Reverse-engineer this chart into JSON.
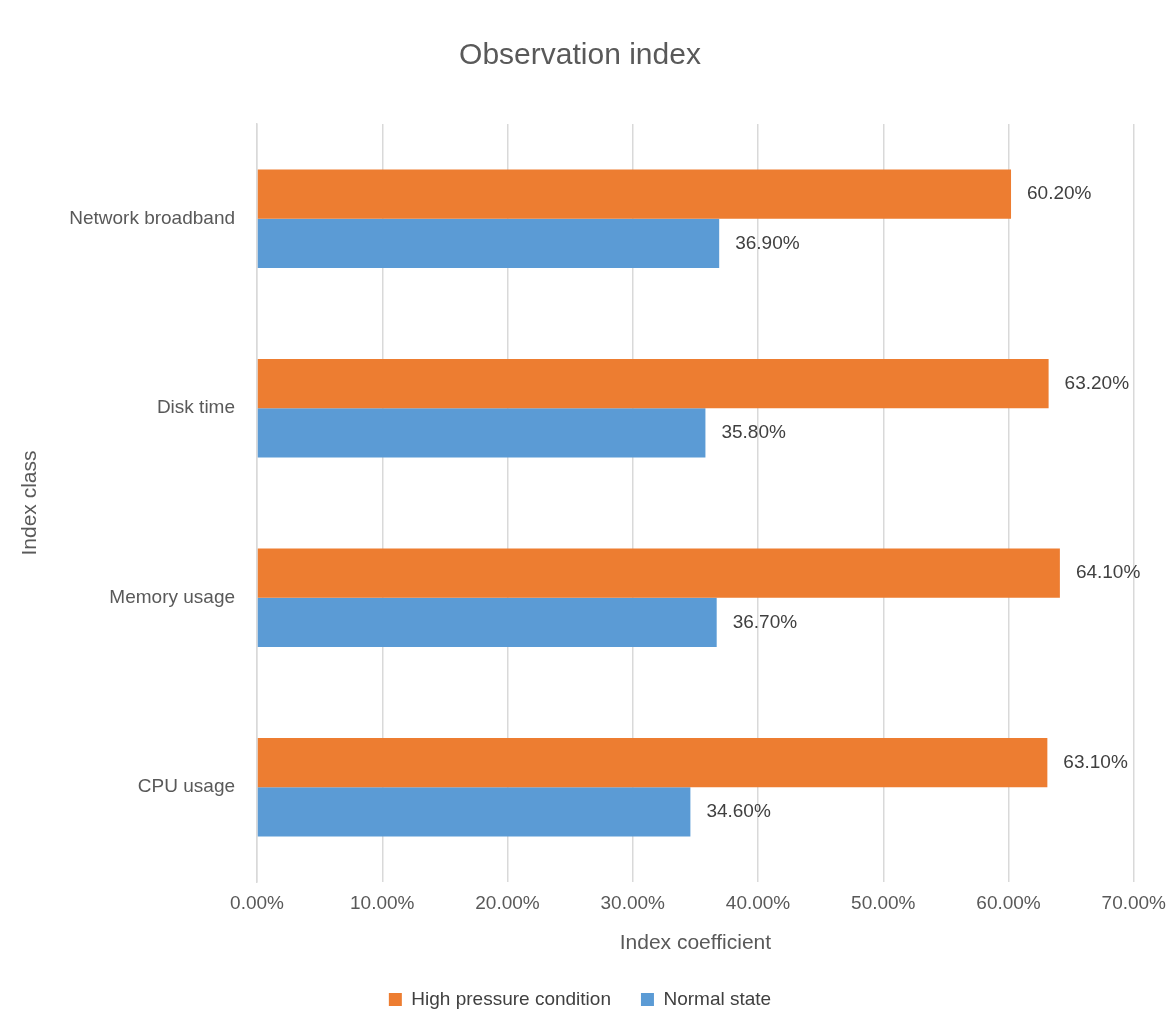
{
  "chart_data": {
    "type": "bar",
    "orientation": "horizontal",
    "title": "Observation index",
    "xlabel": "Index coefficient",
    "ylabel": "Index class",
    "categories": [
      "Network broadband",
      "Disk time",
      "Memory usage",
      "CPU usage"
    ],
    "series": [
      {
        "name": "High pressure condition",
        "color": "#ed7d31",
        "values": [
          60.2,
          63.2,
          64.1,
          63.1
        ],
        "value_labels": [
          "60.20%",
          "63.20%",
          "64.10%",
          "63.10%"
        ]
      },
      {
        "name": "Normal state",
        "color": "#5b9bd5",
        "values": [
          36.9,
          35.8,
          36.7,
          34.6
        ],
        "value_labels": [
          "36.90%",
          "35.80%",
          "36.70%",
          "34.60%"
        ]
      }
    ],
    "xlim": [
      0,
      70
    ],
    "xticks": [
      {
        "value": 0,
        "label": "0.00%"
      },
      {
        "value": 10,
        "label": "10.00%"
      },
      {
        "value": 20,
        "label": "20.00%"
      },
      {
        "value": 30,
        "label": "30.00%"
      },
      {
        "value": 40,
        "label": "40.00%"
      },
      {
        "value": 50,
        "label": "50.00%"
      },
      {
        "value": 60,
        "label": "60.00%"
      },
      {
        "value": 70,
        "label": "70.00%"
      }
    ],
    "grid": "x",
    "legend": "bottom"
  }
}
